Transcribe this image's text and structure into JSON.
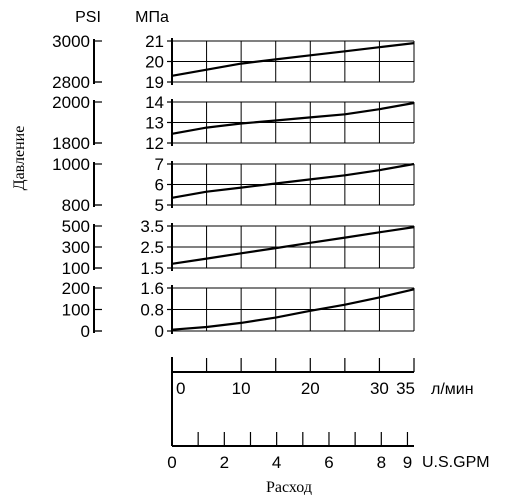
{
  "chart_data": {
    "type": "line",
    "y_axis_title": "Давление",
    "x_axis_title": "Расход",
    "left_unit": "PSI",
    "right_unit": "МПа",
    "panels": [
      {
        "psi_ticks": [
          "3000",
          "2800"
        ],
        "psi_values": [
          3000,
          2800
        ],
        "mpa_ticks": [
          "21",
          "20",
          "19"
        ],
        "mpa_values": [
          21,
          20,
          19
        ],
        "ylim_mpa": [
          19,
          21
        ],
        "series": {
          "x": [
            0,
            5,
            10,
            15,
            20,
            25,
            30,
            35
          ],
          "y": [
            19.3,
            19.6,
            19.9,
            20.1,
            20.3,
            20.5,
            20.7,
            20.9
          ]
        }
      },
      {
        "psi_ticks": [
          "2000",
          "1800"
        ],
        "psi_values": [
          2000,
          1800
        ],
        "mpa_ticks": [
          "14",
          "13",
          "12"
        ],
        "mpa_values": [
          14,
          13,
          12
        ],
        "ylim_mpa": [
          12,
          14
        ],
        "series": {
          "x": [
            0,
            5,
            10,
            15,
            20,
            25,
            30,
            35
          ],
          "y": [
            12.45,
            12.75,
            12.95,
            13.1,
            13.25,
            13.4,
            13.65,
            13.95
          ]
        }
      },
      {
        "psi_ticks": [
          "1000",
          "800"
        ],
        "psi_values": [
          1000,
          800
        ],
        "mpa_ticks": [
          "7",
          "6",
          "5"
        ],
        "mpa_values": [
          7,
          6,
          5
        ],
        "ylim_mpa": [
          5,
          7
        ],
        "series": {
          "x": [
            0,
            5,
            10,
            15,
            20,
            25,
            30,
            35
          ],
          "y": [
            5.35,
            5.65,
            5.85,
            6.05,
            6.25,
            6.45,
            6.7,
            7.0
          ]
        }
      },
      {
        "psi_ticks": [
          "500",
          "300",
          "100"
        ],
        "psi_values": [
          500,
          300,
          100
        ],
        "mpa_ticks": [
          "3.5",
          "2.5",
          "1.5"
        ],
        "mpa_values": [
          3.5,
          2.5,
          1.5
        ],
        "ylim_mpa": [
          1.5,
          3.5
        ],
        "series": {
          "x": [
            0,
            5,
            10,
            15,
            20,
            25,
            30,
            35
          ],
          "y": [
            1.7,
            1.95,
            2.2,
            2.45,
            2.7,
            2.95,
            3.2,
            3.45
          ]
        }
      },
      {
        "psi_ticks": [
          "200",
          "100",
          "0"
        ],
        "psi_values": [
          200,
          100,
          0
        ],
        "mpa_ticks": [
          "1.6",
          "0.8",
          "0"
        ],
        "mpa_values": [
          1.6,
          0.8,
          0
        ],
        "ylim_mpa": [
          0,
          1.6
        ],
        "series": {
          "x": [
            0,
            5,
            10,
            15,
            20,
            25,
            30,
            35
          ],
          "y": [
            0.05,
            0.15,
            0.3,
            0.5,
            0.75,
            0.98,
            1.25,
            1.55
          ]
        }
      }
    ],
    "x_axis_lpm": {
      "unit": "л/мин",
      "ticks": [
        0,
        5,
        10,
        15,
        20,
        25,
        30,
        35
      ],
      "labels": [
        "0",
        "10",
        "20",
        "30",
        "35"
      ],
      "label_values": [
        0,
        10,
        20,
        30,
        35
      ],
      "range": [
        0,
        35
      ]
    },
    "x_axis_gpm": {
      "unit": "U.S.GPM",
      "ticks": [
        0,
        1,
        2,
        3,
        4,
        5,
        6,
        7,
        8,
        9
      ],
      "labels": [
        "0",
        "2",
        "4",
        "6",
        "8",
        "9"
      ],
      "label_values": [
        0,
        2,
        4,
        6,
        8,
        9
      ],
      "range": [
        0,
        9.25
      ]
    },
    "grid": true,
    "legend": "none"
  }
}
